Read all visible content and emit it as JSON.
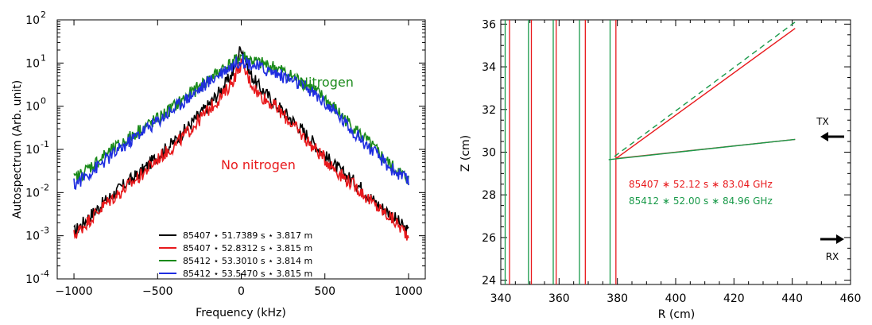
{
  "chart_data": [
    {
      "type": "line",
      "xlabel": "Frequency (kHz)",
      "ylabel": "Autospectrum (Arb. unit)",
      "xlim": [
        -1100,
        1100
      ],
      "ylim_log10": [
        -4,
        2
      ],
      "x_ticks": [
        -1000,
        -500,
        0,
        500,
        1000
      ],
      "x_tick_labels": [
        "−1000",
        "−500",
        "0",
        "500",
        "1000"
      ],
      "y_ticks_log10": [
        -4,
        -3,
        -2,
        -1,
        0,
        1,
        2
      ],
      "y_tick_labels": [
        "10",
        "10",
        "10",
        "10",
        "10",
        "10",
        "10"
      ],
      "y_tick_exponents": [
        "-4",
        "-3",
        "-2",
        "-1",
        "0",
        "1",
        "2"
      ],
      "scale_y": "log",
      "annotations": [
        {
          "text": "Nitrogen",
          "color": "#1a8a1a"
        },
        {
          "text": "No nitrogen",
          "color": "#e8191c"
        }
      ],
      "legend_position": "bottom-center",
      "series": [
        {
          "name": "85407 ⋆ 51.7389 s ⋆ 3.817 m",
          "color": "#000000",
          "x": [
            -1000,
            -900,
            -800,
            -700,
            -600,
            -500,
            -400,
            -300,
            -200,
            -100,
            -50,
            0,
            50,
            100,
            200,
            300,
            400,
            500,
            600,
            700,
            800,
            900,
            1000
          ],
          "y": [
            0.0012,
            0.003,
            0.007,
            0.015,
            0.03,
            0.07,
            0.15,
            0.4,
            1.0,
            3.0,
            6.0,
            25,
            6.0,
            3.0,
            1.2,
            0.5,
            0.2,
            0.07,
            0.03,
            0.015,
            0.006,
            0.003,
            0.0012
          ]
        },
        {
          "name": "85407 ⋆ 52.8312 s ⋆ 3.815 m",
          "color": "#e8191c",
          "x": [
            -1000,
            -900,
            -800,
            -700,
            -600,
            -500,
            -400,
            -300,
            -200,
            -100,
            -50,
            0,
            50,
            100,
            200,
            300,
            400,
            500,
            600,
            700,
            800,
            900,
            1000
          ],
          "y": [
            0.001,
            0.0025,
            0.006,
            0.012,
            0.025,
            0.06,
            0.12,
            0.3,
            0.8,
            2.0,
            4.0,
            10,
            4.0,
            2.0,
            1.0,
            0.4,
            0.15,
            0.06,
            0.025,
            0.012,
            0.005,
            0.0025,
            0.001
          ]
        },
        {
          "name": "85412 ⋆ 53.3010 s ⋆ 3.814 m",
          "color": "#1a8a1a",
          "x": [
            -1000,
            -900,
            -800,
            -700,
            -600,
            -500,
            -400,
            -300,
            -200,
            -100,
            -50,
            0,
            50,
            100,
            200,
            300,
            400,
            500,
            600,
            700,
            800,
            900,
            1000
          ],
          "y": [
            0.02,
            0.04,
            0.08,
            0.15,
            0.3,
            0.5,
            1.0,
            2.0,
            4.0,
            8.0,
            10,
            15,
            12,
            10,
            8.0,
            5.0,
            3.0,
            1.5,
            0.6,
            0.25,
            0.1,
            0.04,
            0.02
          ]
        },
        {
          "name": "85412 ⋆ 53.5470 s ⋆ 3.815 m",
          "color": "#1f2de0",
          "x": [
            -1000,
            -900,
            -800,
            -700,
            -600,
            -500,
            -400,
            -300,
            -200,
            -100,
            -50,
            0,
            50,
            100,
            200,
            300,
            400,
            500,
            600,
            700,
            800,
            900,
            1000
          ],
          "y": [
            0.015,
            0.03,
            0.06,
            0.12,
            0.25,
            0.45,
            0.9,
            1.8,
            3.5,
            7.0,
            9.0,
            12,
            10,
            8.0,
            6.0,
            4.0,
            2.5,
            1.2,
            0.5,
            0.2,
            0.08,
            0.035,
            0.018
          ]
        }
      ]
    },
    {
      "type": "line",
      "xlabel": "R (cm)",
      "ylabel": "Z (cm)",
      "xlim": [
        340,
        460
      ],
      "ylim": [
        23.8,
        36.2
      ],
      "x_ticks": [
        340,
        360,
        380,
        400,
        420,
        440,
        460
      ],
      "y_ticks": [
        24,
        26,
        28,
        30,
        32,
        34,
        36
      ],
      "annotations": [
        {
          "text": "85407 ∗ 52.12 s ∗ 83.04 GHz",
          "color": "#e8191c"
        },
        {
          "text": "85412 ∗ 52.00 s ∗ 84.96 GHz",
          "color": "#1a9a4a"
        },
        {
          "text": "TX",
          "color": "#000000"
        },
        {
          "text": "RX",
          "color": "#000000"
        }
      ],
      "series": [
        {
          "name": "",
          "color": "#e8191c",
          "style": "solid",
          "x": [
            379.5,
            441
          ],
          "y": [
            29.7,
            35.8
          ]
        },
        {
          "name": "",
          "color": "#1a9a4a",
          "style": "dashed",
          "x": [
            379,
            441
          ],
          "y": [
            29.8,
            36.1
          ]
        },
        {
          "name": "",
          "color": "#e8191c",
          "style": "solid",
          "x": [
            379.5,
            441
          ],
          "y": [
            29.7,
            30.6
          ]
        },
        {
          "name": "",
          "color": "#1a9a4a",
          "style": "solid",
          "x": [
            377,
            441
          ],
          "y": [
            29.65,
            30.6
          ]
        }
      ],
      "vertical_lines": [
        {
          "r": 341.5,
          "color": "#1a9a4a"
        },
        {
          "r": 343,
          "color": "#e8191c"
        },
        {
          "r": 349.5,
          "color": "#1a9a4a"
        },
        {
          "r": 350.5,
          "color": "#e8191c"
        },
        {
          "r": 358,
          "color": "#1a9a4a"
        },
        {
          "r": 359,
          "color": "#e8191c"
        },
        {
          "r": 367,
          "color": "#1a9a4a"
        },
        {
          "r": 369,
          "color": "#e8191c"
        },
        {
          "r": 377.5,
          "color": "#1a9a4a"
        },
        {
          "r": 379.5,
          "color": "#e8191c"
        }
      ]
    }
  ]
}
